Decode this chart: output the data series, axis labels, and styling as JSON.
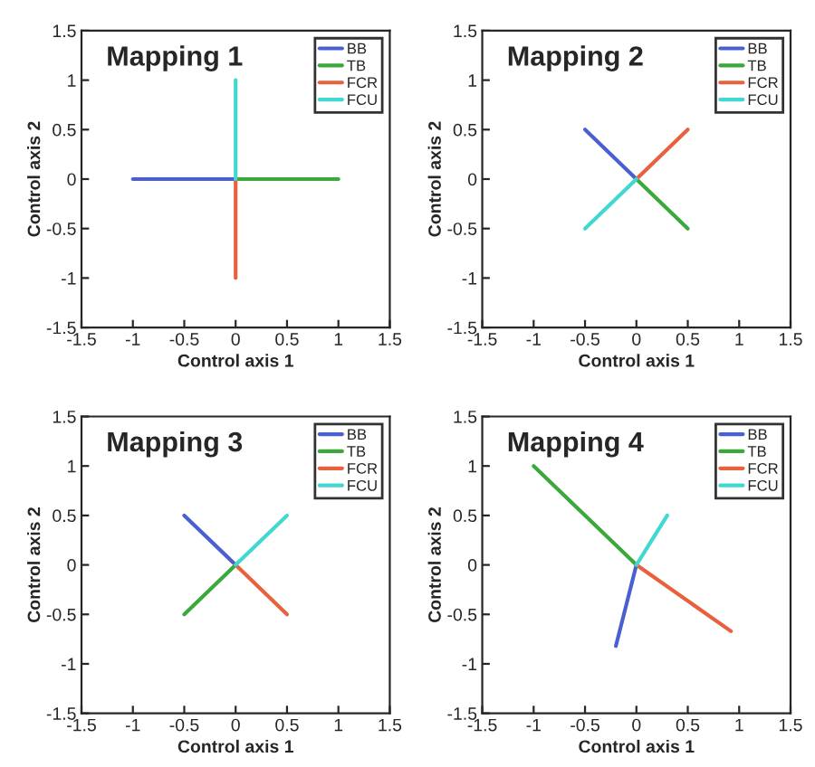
{
  "chart_data": [
    {
      "type": "line",
      "title": "Mapping 1",
      "xlabel": "Control axis 1",
      "ylabel": "Control axis 2",
      "xlim": [
        -1.5,
        1.5
      ],
      "ylim": [
        -1.5,
        1.5
      ],
      "xticks": [
        -1.5,
        -1,
        -0.5,
        0,
        0.5,
        1,
        1.5
      ],
      "yticks": [
        -1.5,
        -1,
        -0.5,
        0,
        0.5,
        1,
        1.5
      ],
      "grid": false,
      "legend": "top right",
      "marker": "none",
      "line_style": "solid",
      "series": [
        {
          "name": "BB",
          "color": "#4a5fd0",
          "x": [
            0,
            -1
          ],
          "values": [
            0,
            0
          ]
        },
        {
          "name": "TB",
          "color": "#3aa83a",
          "x": [
            0,
            1
          ],
          "values": [
            0,
            0
          ]
        },
        {
          "name": "FCR",
          "color": "#e8603c",
          "x": [
            0,
            0
          ],
          "values": [
            0,
            -1
          ]
        },
        {
          "name": "FCU",
          "color": "#40d8d0",
          "x": [
            0,
            0
          ],
          "values": [
            0,
            1
          ]
        }
      ]
    },
    {
      "type": "line",
      "title": "Mapping 2",
      "xlabel": "Control axis 1",
      "ylabel": "Control axis 2",
      "xlim": [
        -1.5,
        1.5
      ],
      "ylim": [
        -1.5,
        1.5
      ],
      "xticks": [
        -1.5,
        -1,
        -0.5,
        0,
        0.5,
        1,
        1.5
      ],
      "yticks": [
        -1.5,
        -1,
        -0.5,
        0,
        0.5,
        1,
        1.5
      ],
      "grid": false,
      "legend": "top right",
      "marker": "none",
      "line_style": "solid",
      "series": [
        {
          "name": "BB",
          "color": "#4a5fd0",
          "x": [
            0,
            -0.5
          ],
          "values": [
            0,
            0.5
          ]
        },
        {
          "name": "TB",
          "color": "#3aa83a",
          "x": [
            0,
            0.5
          ],
          "values": [
            0,
            -0.5
          ]
        },
        {
          "name": "FCR",
          "color": "#e8603c",
          "x": [
            0,
            0.5
          ],
          "values": [
            0,
            0.5
          ]
        },
        {
          "name": "FCU",
          "color": "#40d8d0",
          "x": [
            0,
            -0.5
          ],
          "values": [
            0,
            -0.5
          ]
        }
      ]
    },
    {
      "type": "line",
      "title": "Mapping 3",
      "xlabel": "Control axis 1",
      "ylabel": "Control axis 2",
      "xlim": [
        -1.5,
        1.5
      ],
      "ylim": [
        -1.5,
        1.5
      ],
      "xticks": [
        -1.5,
        -1,
        -0.5,
        0,
        0.5,
        1,
        1.5
      ],
      "yticks": [
        -1.5,
        -1,
        -0.5,
        0,
        0.5,
        1,
        1.5
      ],
      "grid": false,
      "legend": "top right",
      "marker": "none",
      "line_style": "solid",
      "series": [
        {
          "name": "BB",
          "color": "#4a5fd0",
          "x": [
            0,
            -0.5
          ],
          "values": [
            0,
            0.5
          ]
        },
        {
          "name": "TB",
          "color": "#3aa83a",
          "x": [
            0,
            -0.5
          ],
          "values": [
            0,
            -0.5
          ]
        },
        {
          "name": "FCR",
          "color": "#e8603c",
          "x": [
            0,
            0.5
          ],
          "values": [
            0,
            -0.5
          ]
        },
        {
          "name": "FCU",
          "color": "#40d8d0",
          "x": [
            0,
            0.5
          ],
          "values": [
            0,
            0.5
          ]
        }
      ]
    },
    {
      "type": "line",
      "title": "Mapping 4",
      "xlabel": "Control axis 1",
      "ylabel": "Control axis 2",
      "xlim": [
        -1.5,
        1.5
      ],
      "ylim": [
        -1.5,
        1.5
      ],
      "xticks": [
        -1.5,
        -1,
        -0.5,
        0,
        0.5,
        1,
        1.5
      ],
      "yticks": [
        -1.5,
        -1,
        -0.5,
        0,
        0.5,
        1,
        1.5
      ],
      "grid": false,
      "legend": "top right",
      "marker": "none",
      "line_style": "solid",
      "series": [
        {
          "name": "BB",
          "color": "#4a5fd0",
          "x": [
            0,
            -0.2
          ],
          "values": [
            0,
            -0.82
          ]
        },
        {
          "name": "TB",
          "color": "#3aa83a",
          "x": [
            0,
            -1
          ],
          "values": [
            0,
            1
          ]
        },
        {
          "name": "FCR",
          "color": "#e8603c",
          "x": [
            0,
            0.92
          ],
          "values": [
            0,
            -0.67
          ]
        },
        {
          "name": "FCU",
          "color": "#40d8d0",
          "x": [
            0,
            0.3
          ],
          "values": [
            0,
            0.5
          ]
        }
      ]
    }
  ]
}
